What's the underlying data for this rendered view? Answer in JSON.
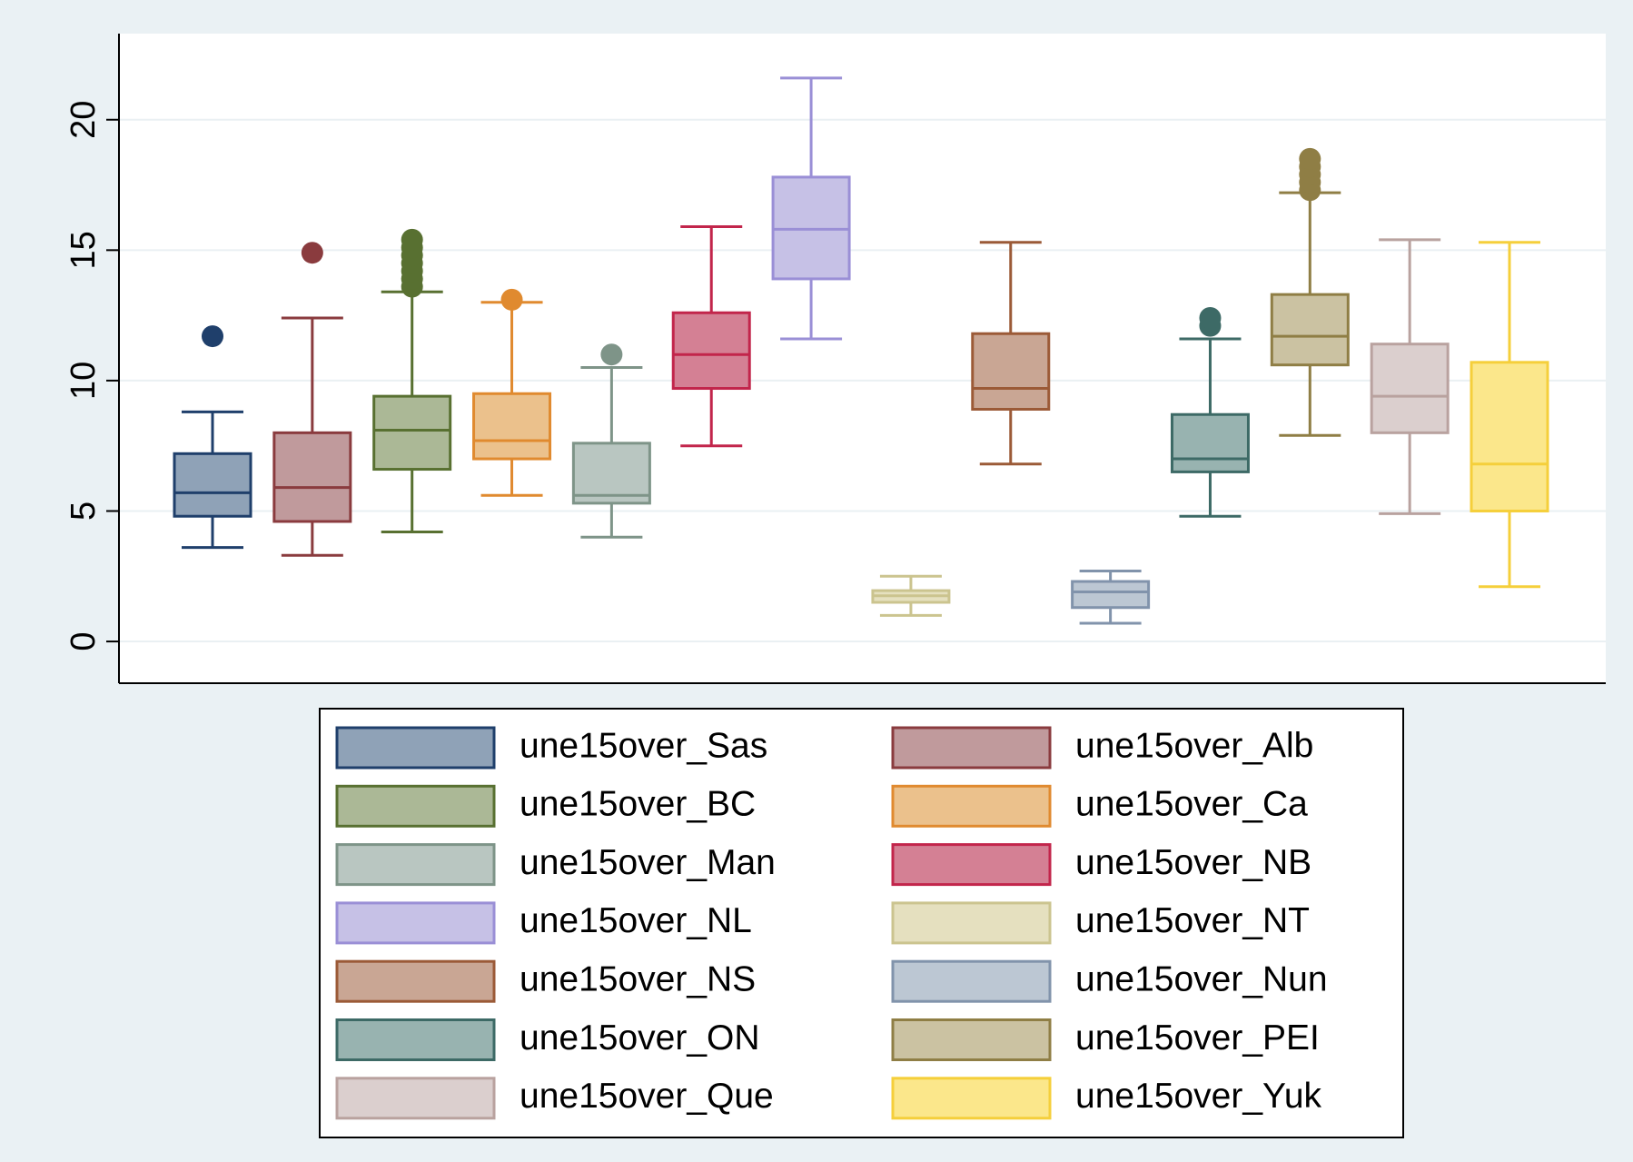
{
  "chart_data": {
    "type": "box",
    "title": "",
    "xlabel": "",
    "ylabel": "",
    "ylim": [
      -1.6,
      23.3
    ],
    "yticks": [
      0,
      5,
      10,
      15,
      20
    ],
    "ytick_labels": [
      "0",
      "5",
      "10",
      "15",
      "20"
    ],
    "grid": true,
    "legend_position": "bottom",
    "series": [
      {
        "name": "une15over_Sas",
        "color": "#1f3f6b",
        "fill": "#8fa2b7",
        "min": 3.6,
        "q1": 4.8,
        "median": 5.7,
        "q3": 7.2,
        "max": 8.8,
        "outliers": [
          11.7
        ]
      },
      {
        "name": "une15over_Alb",
        "color": "#8a3b3e",
        "fill": "#c09a9c",
        "min": 3.3,
        "q1": 4.6,
        "median": 5.9,
        "q3": 8.0,
        "max": 12.4,
        "outliers": [
          14.9
        ]
      },
      {
        "name": "une15over_BC",
        "color": "#587031",
        "fill": "#abb896",
        "min": 4.2,
        "q1": 6.6,
        "median": 8.1,
        "q3": 9.4,
        "max": 13.4,
        "outliers": [
          13.6,
          13.9,
          14.2,
          14.5,
          14.8,
          15.1,
          15.4
        ]
      },
      {
        "name": "une15over_Ca",
        "color": "#e08a2f",
        "fill": "#ebc18c",
        "min": 5.6,
        "q1": 7.0,
        "median": 7.7,
        "q3": 9.5,
        "max": 13.0,
        "outliers": [
          13.1
        ]
      },
      {
        "name": "une15over_Man",
        "color": "#7e9488",
        "fill": "#b9c6c1",
        "min": 4.0,
        "q1": 5.3,
        "median": 5.6,
        "q3": 7.6,
        "max": 10.5,
        "outliers": [
          11.0
        ]
      },
      {
        "name": "une15over_NB",
        "color": "#c2254b",
        "fill": "#d48094",
        "min": 7.5,
        "q1": 9.7,
        "median": 11.0,
        "q3": 12.6,
        "max": 15.9,
        "outliers": []
      },
      {
        "name": "une15over_NL",
        "color": "#9a8fd6",
        "fill": "#c6c1e6",
        "min": 11.6,
        "q1": 13.9,
        "median": 15.8,
        "q3": 17.8,
        "max": 21.6,
        "outliers": []
      },
      {
        "name": "une15over_NT",
        "color": "#cbc48f",
        "fill": "#e5e0bf",
        "min": 1.0,
        "q1": 1.5,
        "median": 1.75,
        "q3": 1.95,
        "max": 2.5,
        "outliers": []
      },
      {
        "name": "une15over_NS",
        "color": "#9b5a37",
        "fill": "#c9a694",
        "min": 6.8,
        "q1": 8.9,
        "median": 9.7,
        "q3": 11.8,
        "max": 15.3,
        "outliers": []
      },
      {
        "name": "une15over_Nun",
        "color": "#8193ab",
        "fill": "#bcc7d3",
        "min": 0.7,
        "q1": 1.3,
        "median": 1.9,
        "q3": 2.3,
        "max": 2.7,
        "outliers": []
      },
      {
        "name": "une15over_ON",
        "color": "#3d6a66",
        "fill": "#98b3b0",
        "min": 4.8,
        "q1": 6.5,
        "median": 7.0,
        "q3": 8.7,
        "max": 11.6,
        "outliers": [
          12.1,
          12.4
        ]
      },
      {
        "name": "une15over_PEI",
        "color": "#8f7e45",
        "fill": "#cbc2a2",
        "min": 7.9,
        "q1": 10.6,
        "median": 11.7,
        "q3": 13.3,
        "max": 17.2,
        "outliers": [
          17.3,
          17.6,
          17.9,
          18.2,
          18.5
        ]
      },
      {
        "name": "une15over_Que",
        "color": "#b9a29f",
        "fill": "#dbcfce",
        "min": 4.9,
        "q1": 8.0,
        "median": 9.4,
        "q3": 11.4,
        "max": 15.4,
        "outliers": []
      },
      {
        "name": "une15over_Yuk",
        "color": "#f5cf3b",
        "fill": "#fbe78b",
        "min": 2.1,
        "q1": 5.0,
        "median": 6.8,
        "q3": 10.7,
        "max": 15.3,
        "outliers": []
      }
    ]
  }
}
